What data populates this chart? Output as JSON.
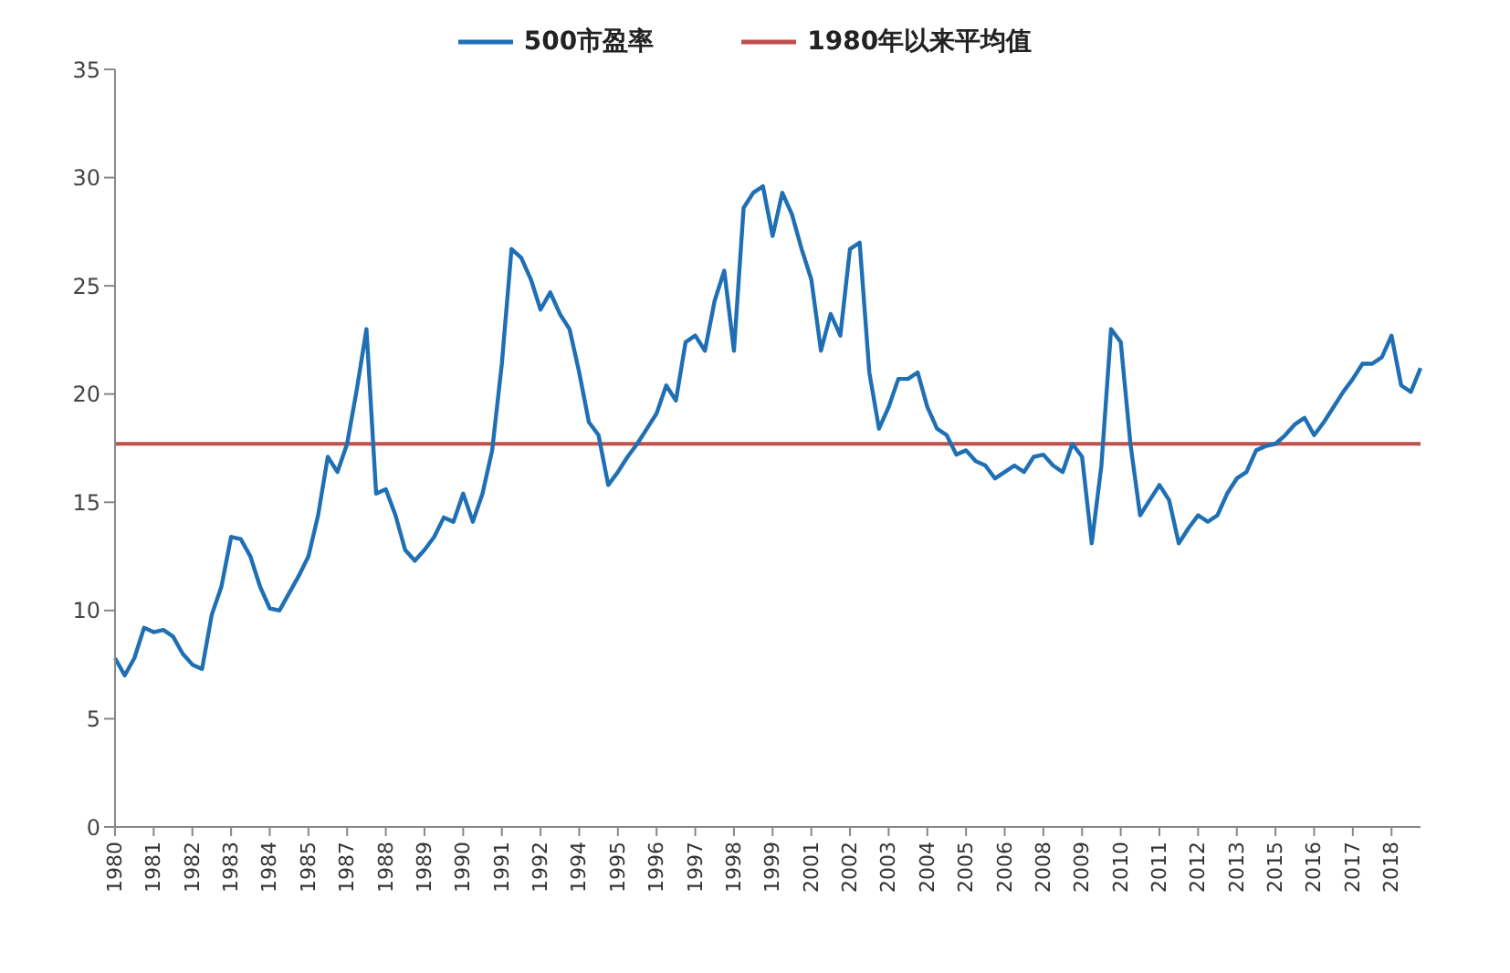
{
  "chart_data": {
    "type": "line",
    "categories": [
      "1980",
      null,
      null,
      null,
      "1981",
      null,
      null,
      null,
      "1982",
      null,
      null,
      null,
      "1983",
      null,
      null,
      null,
      "1984",
      null,
      null,
      null,
      "1985",
      null,
      null,
      null,
      "1987",
      null,
      null,
      null,
      "1988",
      null,
      null,
      null,
      "1989",
      null,
      null,
      null,
      "1990",
      null,
      null,
      null,
      "1991",
      null,
      null,
      null,
      "1992",
      null,
      null,
      null,
      "1994",
      null,
      null,
      null,
      "1995",
      null,
      null,
      null,
      "1996",
      null,
      null,
      null,
      "1997",
      null,
      null,
      null,
      "1998",
      null,
      null,
      null,
      "1999",
      null,
      null,
      null,
      "2001",
      null,
      null,
      null,
      "2002",
      null,
      null,
      null,
      "2003",
      null,
      null,
      null,
      "2004",
      null,
      null,
      null,
      "2005",
      null,
      null,
      null,
      "2006",
      null,
      null,
      null,
      "2008",
      null,
      null,
      null,
      "2009",
      null,
      null,
      null,
      "2010",
      null,
      null,
      null,
      "2011",
      null,
      null,
      null,
      "2012",
      null,
      null,
      null,
      "2013",
      null,
      null,
      null,
      "2015",
      null,
      null,
      null,
      "2016",
      null,
      null,
      null,
      "2017",
      null,
      null,
      null,
      "2018",
      null,
      null,
      null
    ],
    "series": [
      {
        "name": "500市盈率",
        "color": "#1f6fb5",
        "values": [
          7.8,
          7.0,
          7.8,
          9.2,
          9.0,
          9.1,
          8.8,
          8.0,
          7.5,
          7.3,
          9.8,
          11.1,
          13.4,
          13.3,
          12.5,
          11.1,
          10.1,
          10.0,
          10.8,
          11.6,
          12.5,
          14.4,
          17.1,
          16.4,
          17.7,
          20.2,
          23.0,
          15.4,
          15.6,
          14.4,
          12.8,
          12.3,
          12.8,
          13.4,
          14.3,
          14.1,
          15.4,
          14.1,
          15.4,
          17.4,
          21.4,
          26.7,
          26.3,
          25.3,
          23.9,
          24.7,
          23.7,
          23.0,
          21.0,
          18.7,
          18.1,
          15.8,
          16.4,
          17.1,
          17.7,
          18.4,
          19.1,
          20.4,
          19.7,
          22.4,
          22.7,
          22.0,
          24.3,
          25.7,
          22.0,
          28.6,
          29.3,
          29.6,
          27.3,
          29.3,
          28.3,
          26.7,
          25.3,
          22.0,
          23.7,
          22.7,
          26.7,
          27.0,
          21.0,
          18.4,
          19.4,
          20.7,
          20.7,
          21.0,
          19.4,
          18.4,
          18.1,
          17.2,
          17.4,
          16.9,
          16.7,
          16.1,
          16.4,
          16.7,
          16.4,
          17.1,
          17.2,
          16.7,
          16.4,
          17.7,
          17.1,
          13.1,
          16.7,
          23.0,
          22.4,
          17.7,
          14.4,
          15.1,
          15.8,
          15.1,
          13.1,
          13.8,
          14.4,
          14.1,
          14.4,
          15.4,
          16.1,
          16.4,
          17.4,
          17.6,
          17.7,
          18.1,
          18.6,
          18.9,
          18.1,
          18.7,
          19.4,
          20.1,
          20.7,
          21.4,
          21.4,
          21.7,
          22.7,
          20.4,
          20.1,
          21.2
        ]
      }
    ],
    "ylim": [
      0,
      35
    ],
    "yticks": [
      0,
      5,
      10,
      15,
      20,
      25,
      30,
      35
    ],
    "ref_lines": [
      {
        "axis": "y",
        "value": 17.7,
        "label": "1980年以来平均值",
        "color": "#c0504d"
      }
    ],
    "grid": false,
    "legend": "top",
    "marker": "none",
    "line_style": "solid"
  }
}
